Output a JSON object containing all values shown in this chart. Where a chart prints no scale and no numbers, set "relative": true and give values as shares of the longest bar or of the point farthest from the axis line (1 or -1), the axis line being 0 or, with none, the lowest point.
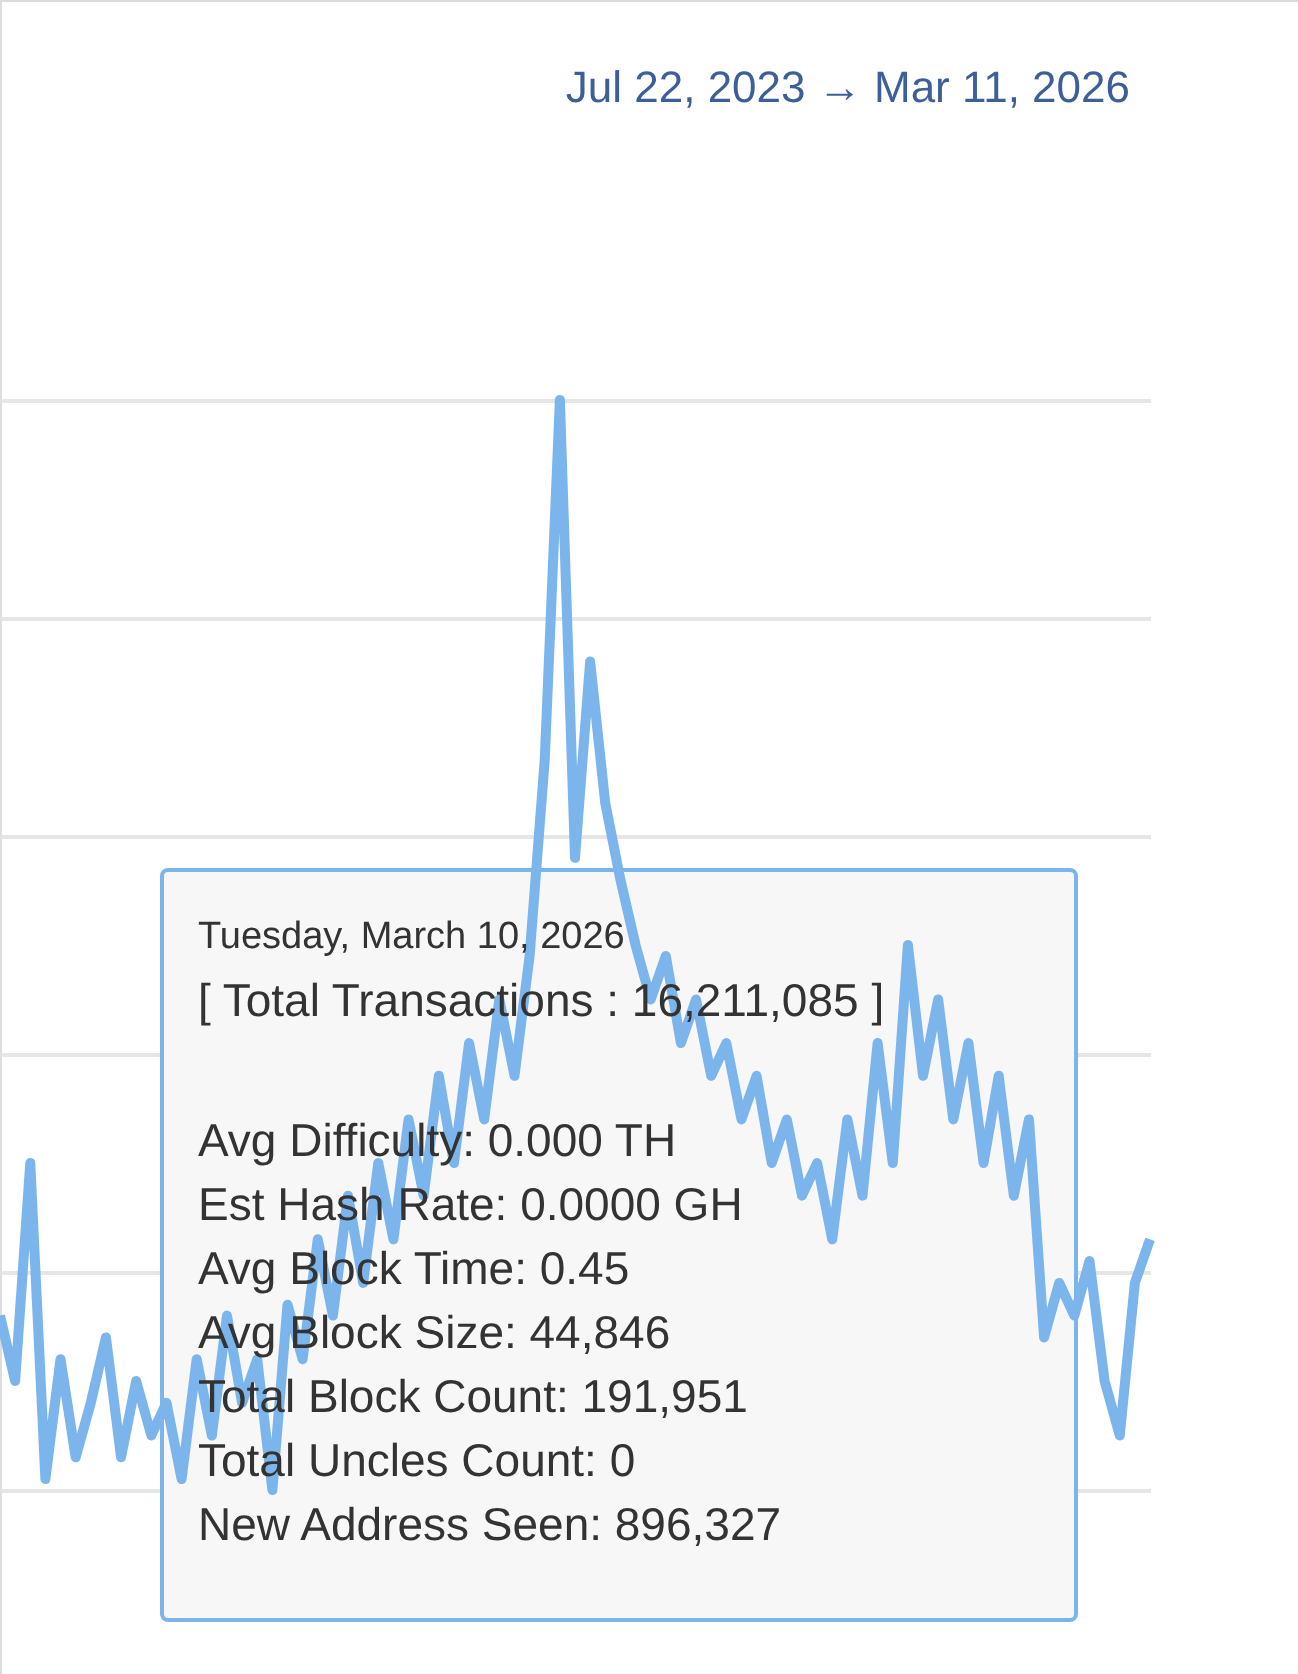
{
  "chart_data": {
    "type": "line",
    "relative": true,
    "grid": "y",
    "subtitle": "Jul 22, 2023 → Mar 11, 2026",
    "categories": [
      null,
      null,
      null,
      null,
      null,
      null,
      null,
      null,
      null,
      null,
      null,
      null,
      null,
      null,
      null,
      null,
      null,
      null,
      null,
      null,
      null,
      null,
      null,
      null,
      null,
      null,
      null,
      null,
      null,
      null,
      null,
      null,
      null,
      null,
      null,
      null,
      null,
      null,
      null,
      null,
      null,
      null,
      null,
      null,
      null,
      null,
      null,
      null,
      null,
      null,
      null,
      null,
      null,
      null,
      null,
      null,
      null,
      null,
      null,
      null,
      null,
      null,
      null,
      null,
      null,
      null,
      null,
      null,
      null,
      null,
      null,
      null,
      null,
      null,
      null,
      null,
      null
    ],
    "series": [
      {
        "color": "#7cb5ec",
        "values": [
          0.16,
          0.1,
          0.3,
          0.01,
          0.12,
          0.03,
          0.08,
          0.14,
          0.03,
          0.1,
          0.05,
          0.08,
          0.01,
          0.12,
          0.05,
          0.16,
          0.08,
          0.12,
          0,
          0.17,
          0.12,
          0.23,
          0.16,
          0.27,
          0.19,
          0.3,
          0.23,
          0.34,
          0.27,
          0.38,
          0.3,
          0.41,
          0.34,
          0.45,
          0.38,
          0.49,
          0.67,
          1,
          0.58,
          0.76,
          0.63,
          0.56,
          0.5,
          0.45,
          0.49,
          0.41,
          0.45,
          0.38,
          0.41,
          0.34,
          0.38,
          0.3,
          0.34,
          0.27,
          0.3,
          0.23,
          0.34,
          0.27,
          0.41,
          0.3,
          0.5,
          0.38,
          0.45,
          0.34,
          0.41,
          0.3,
          0.38,
          0.27,
          0.34,
          0.14,
          0.19,
          0.16,
          0.21,
          0.1,
          0.05,
          0.19,
          0.23
        ]
      }
    ],
    "annotations": [
      "Tuesday, March 10, 2026",
      "[ Total Transactions : 16,211,085 ]",
      "Avg Difficulty: 0.000 TH",
      "Est Hash Rate: 0.0000 GH",
      "Avg Block Time: 0.45",
      "Avg Block Size: 44,846",
      "Total Block Count: 191,951",
      "Total Uncles Count: 0",
      "New Address Seen: 896,327"
    ]
  }
}
